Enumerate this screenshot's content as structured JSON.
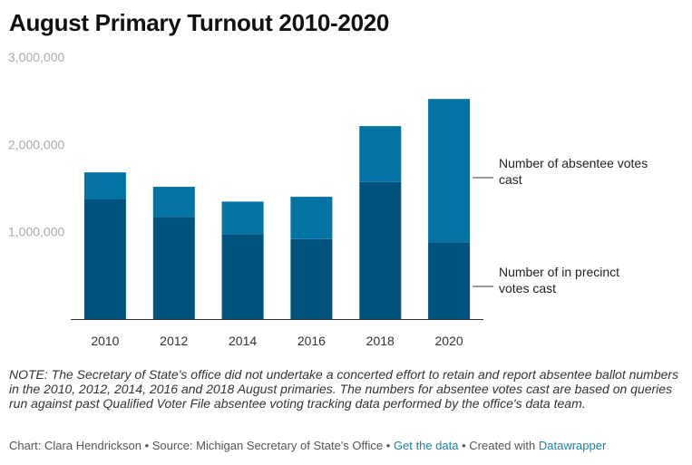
{
  "title": "August Primary Turnout 2010-2020",
  "note": "NOTE: The Secretary of State's office did not undertake a concerted effort to retain and report absentee ballot numbers in the 2010, 2012, 2014, 2016 and 2018 August primaries. The numbers for absentee votes cast are based on queries run against past Qualified Voter File absentee voting tracking data performed by the office's data team.",
  "footer": {
    "chart_by": "Chart: Clara Hendrickson",
    "sep1": " • ",
    "source": "Source: Michigan Secretary of State's Office",
    "sep2": " • ",
    "get_data": "Get the data",
    "sep3": " • ",
    "created_with": "Created with ",
    "tool": "Datawrapper"
  },
  "colors": {
    "in_precinct": "#01527c",
    "absentee": "#0273a2",
    "link": "#1d81a2"
  },
  "chart_data": {
    "type": "bar",
    "stacked": true,
    "categories": [
      "2010",
      "2012",
      "2014",
      "2016",
      "2018",
      "2020"
    ],
    "series": [
      {
        "name": "Number of in precinct votes cast",
        "values": [
          1370000,
          1170000,
          970000,
          915000,
          1570000,
          880000
        ]
      },
      {
        "name": "Number of absentee votes cast",
        "values": [
          310000,
          345000,
          375000,
          485000,
          640000,
          1640000
        ]
      }
    ],
    "y_ticks": [
      {
        "value": 1000000,
        "label": "1,000,000"
      },
      {
        "value": 2000000,
        "label": "2,000,000"
      },
      {
        "value": 3000000,
        "label": "3,000,000"
      }
    ],
    "ylim": [
      0,
      3000000
    ],
    "legend_placement": "right",
    "grid": false,
    "title": "August Primary Turnout 2010-2020"
  }
}
